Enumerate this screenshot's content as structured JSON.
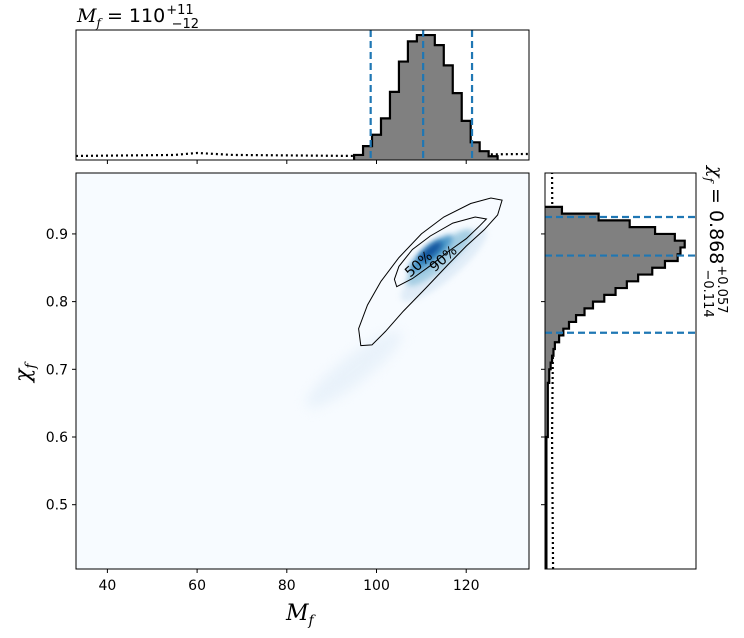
{
  "chart_data": [
    {
      "type": "histogram",
      "panel": "top-marginal",
      "title_symbol": "M",
      "title_sub": "f",
      "title_value": " = 110",
      "title_plus": "+11",
      "title_minus": "−12",
      "xlim": [
        33,
        134
      ],
      "bin_edges": [
        95,
        97,
        99,
        101,
        103,
        105,
        107,
        109,
        111,
        113,
        115,
        117,
        119,
        121,
        123,
        125,
        127
      ],
      "counts": [
        4,
        11,
        20,
        33,
        54,
        78,
        94,
        99,
        99,
        91,
        75,
        53,
        31,
        14,
        7,
        3
      ],
      "ylim": [
        0,
        103
      ],
      "quantile_lines": [
        98.7,
        110.4,
        121.3
      ],
      "prior_level": 4,
      "colors": {
        "fill": "#808080",
        "edge": "#000000",
        "quantile": "#1f77b4"
      }
    },
    {
      "type": "heatmap",
      "panel": "joint",
      "xlabel_symbol": "M",
      "xlabel_sub": "f",
      "ylabel_symbol": "χ",
      "ylabel_sub": "f",
      "xlim": [
        33,
        134
      ],
      "ylim": [
        0.405,
        0.99
      ],
      "xticks": [
        40,
        60,
        80,
        100,
        120
      ],
      "yticks": [
        0.5,
        0.6,
        0.7,
        0.8,
        0.9
      ],
      "contour_labels": [
        "50%",
        "90%"
      ],
      "contour_50": [
        [
          104.5,
          0.822
        ],
        [
          108,
          0.834
        ],
        [
          112,
          0.853
        ],
        [
          116,
          0.874
        ],
        [
          120,
          0.893
        ],
        [
          123,
          0.912
        ],
        [
          124.5,
          0.922
        ],
        [
          122,
          0.925
        ],
        [
          117,
          0.916
        ],
        [
          112,
          0.897
        ],
        [
          108,
          0.877
        ],
        [
          105,
          0.852
        ],
        [
          104,
          0.833
        ]
      ],
      "contour_90": [
        [
          96.5,
          0.735
        ],
        [
          99,
          0.736
        ],
        [
          102,
          0.756
        ],
        [
          106,
          0.786
        ],
        [
          111,
          0.82
        ],
        [
          116,
          0.855
        ],
        [
          120,
          0.882
        ],
        [
          124,
          0.906
        ],
        [
          127,
          0.928
        ],
        [
          128,
          0.95
        ],
        [
          125.5,
          0.953
        ],
        [
          121,
          0.945
        ],
        [
          115,
          0.925
        ],
        [
          110,
          0.9
        ],
        [
          105,
          0.865
        ],
        [
          101,
          0.83
        ],
        [
          98,
          0.795
        ],
        [
          96,
          0.76
        ]
      ],
      "density_peak": [
        112,
        0.87
      ],
      "colormap": [
        "#f7fbff",
        "#deebf7",
        "#9ecae1",
        "#4292c6",
        "#08519c"
      ]
    },
    {
      "type": "histogram",
      "panel": "right-marginal",
      "orientation": "horizontal",
      "title_symbol": "χ",
      "title_sub": "f",
      "title_value": " = 0.868",
      "title_plus": "+0.057",
      "title_minus": "−0.114",
      "ylim": [
        0.405,
        0.99
      ],
      "bin_edges": [
        0.4,
        0.42,
        0.44,
        0.46,
        0.48,
        0.5,
        0.52,
        0.54,
        0.56,
        0.58,
        0.6,
        0.62,
        0.64,
        0.66,
        0.68,
        0.7,
        0.71,
        0.72,
        0.73,
        0.74,
        0.75,
        0.76,
        0.77,
        0.78,
        0.79,
        0.8,
        0.81,
        0.82,
        0.83,
        0.84,
        0.85,
        0.86,
        0.87,
        0.88,
        0.89,
        0.9,
        0.91,
        0.92,
        0.93,
        0.94
      ],
      "counts": [
        1,
        1,
        1,
        1,
        1,
        1,
        1,
        1,
        1,
        1,
        2,
        2,
        2,
        2,
        3,
        4,
        5,
        6,
        7,
        10,
        13,
        17,
        22,
        28,
        34,
        42,
        50,
        58,
        66,
        76,
        85,
        94,
        96,
        99,
        92,
        78,
        60,
        38,
        12
      ],
      "xlim": [
        0,
        107
      ],
      "quantile_lines": [
        0.754,
        0.868,
        0.925
      ],
      "prior_level": 5,
      "colors": {
        "fill": "#808080",
        "edge": "#000000",
        "quantile": "#1f77b4"
      }
    }
  ]
}
